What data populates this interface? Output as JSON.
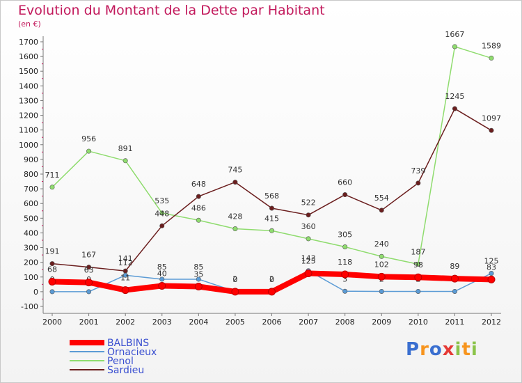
{
  "chart_data": {
    "type": "line",
    "title": "Evolution du Montant de la Dette par Habitant",
    "subtitle": "(en €)",
    "xlabel": "",
    "ylabel": "",
    "x": [
      "2000",
      "2001",
      "2002",
      "2003",
      "2004",
      "2005",
      "2006",
      "2007",
      "2008",
      "2009",
      "2010",
      "2011",
      "2012"
    ],
    "ylim": [
      -100,
      1700
    ],
    "yticks": [
      -100,
      0,
      100,
      200,
      300,
      400,
      500,
      600,
      700,
      800,
      900,
      1000,
      1100,
      1200,
      1300,
      1400,
      1500,
      1600,
      1700
    ],
    "grid": false,
    "legend_position": "bottom-left",
    "series": [
      {
        "name": "BALBINS",
        "color": "#ff0000",
        "values": [
          68,
          63,
          11,
          40,
          35,
          0,
          0,
          125,
          118,
          102,
          98,
          89,
          83
        ],
        "labels": [
          "68",
          "63",
          "11",
          "40",
          "35",
          "0",
          "0",
          "125",
          "118",
          "102",
          "98",
          "89",
          "83"
        ]
      },
      {
        "name": "Ornacieux",
        "color": "#5b9bd5",
        "values": [
          0,
          0,
          112,
          85,
          85,
          2,
          2,
          143,
          3,
          2,
          2,
          2,
          125
        ],
        "labels": [
          "0",
          "0",
          "112",
          "85",
          "85",
          "2",
          "2",
          "143",
          "3",
          "2",
          "2",
          "2",
          "125"
        ]
      },
      {
        "name": "Penol",
        "color": "#8fdc6e",
        "values": [
          711,
          956,
          891,
          535,
          486,
          428,
          415,
          360,
          305,
          240,
          187,
          1667,
          1589
        ],
        "labels": [
          "711",
          "956",
          "891",
          "535",
          "486",
          "428",
          "415",
          "360",
          "305",
          "240",
          "187",
          "1667",
          "1589"
        ]
      },
      {
        "name": "Sardieu",
        "color": "#6b1e1e",
        "values": [
          191,
          167,
          141,
          448,
          648,
          745,
          568,
          522,
          660,
          554,
          739,
          1245,
          1097
        ],
        "labels": [
          "191",
          "167",
          "141",
          "448",
          "648",
          "745",
          "568",
          "522",
          "660",
          "554",
          "739",
          "1245",
          "1097"
        ]
      }
    ]
  },
  "brand": {
    "letters": [
      "P",
      "r",
      "o",
      "x",
      "i",
      "t",
      "i"
    ],
    "colors": [
      "#3a6fd0",
      "#f7941d",
      "#3a6fd0",
      "#e53935",
      "#8bc34a",
      "#f7941d",
      "#8bc34a"
    ]
  }
}
